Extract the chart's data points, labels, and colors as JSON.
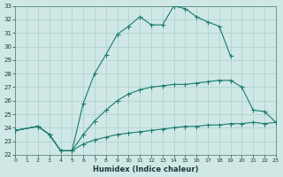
{
  "xlabel": "Humidex (Indice chaleur)",
  "bg_color": "#cfe8e5",
  "grid_color": "#a8d0cc",
  "line_color": "#1a7a6e",
  "ylim": [
    22,
    33
  ],
  "xlim": [
    0,
    23
  ],
  "curve1_x": [
    0,
    2,
    3,
    4,
    5,
    6,
    7,
    8,
    9,
    10,
    11,
    12,
    13,
    14,
    15,
    16,
    17,
    18,
    19
  ],
  "curve1_y": [
    23.8,
    24.1,
    23.5,
    22.3,
    22.3,
    25.8,
    28.0,
    29.4,
    30.9,
    31.5,
    32.2,
    31.6,
    31.6,
    33.0,
    32.8,
    32.2,
    31.8,
    31.5,
    29.3
  ],
  "curve2_x": [
    0,
    2,
    3,
    4,
    5,
    6,
    7,
    8,
    9,
    10,
    11,
    12,
    13,
    14,
    15,
    16,
    17,
    18,
    19,
    20,
    21,
    22,
    23
  ],
  "curve2_y": [
    23.8,
    24.1,
    23.5,
    22.3,
    22.3,
    23.5,
    24.5,
    25.3,
    26.0,
    26.5,
    26.8,
    27.0,
    27.1,
    27.2,
    27.2,
    27.3,
    27.4,
    27.5,
    27.5,
    27.0,
    25.3,
    25.2,
    24.4
  ],
  "curve3_x": [
    0,
    2,
    3,
    4,
    5,
    6,
    7,
    8,
    9,
    10,
    11,
    12,
    13,
    14,
    15,
    16,
    17,
    18,
    19,
    20,
    21,
    22,
    23
  ],
  "curve3_y": [
    23.8,
    24.1,
    23.5,
    22.3,
    22.3,
    22.8,
    23.1,
    23.3,
    23.5,
    23.6,
    23.7,
    23.8,
    23.9,
    24.0,
    24.1,
    24.1,
    24.2,
    24.2,
    24.3,
    24.3,
    24.4,
    24.3,
    24.4
  ]
}
